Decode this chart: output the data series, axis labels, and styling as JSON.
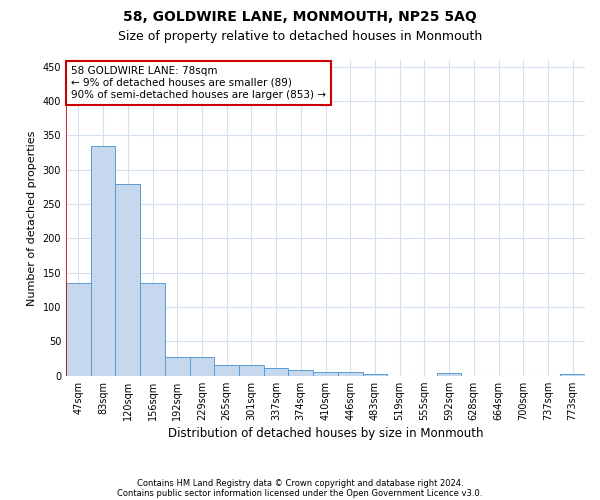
{
  "title1": "58, GOLDWIRE LANE, MONMOUTH, NP25 5AQ",
  "title2": "Size of property relative to detached houses in Monmouth",
  "xlabel": "Distribution of detached houses by size in Monmouth",
  "ylabel": "Number of detached properties",
  "categories": [
    "47sqm",
    "83sqm",
    "120sqm",
    "156sqm",
    "192sqm",
    "229sqm",
    "265sqm",
    "301sqm",
    "337sqm",
    "374sqm",
    "410sqm",
    "446sqm",
    "483sqm",
    "519sqm",
    "555sqm",
    "592sqm",
    "628sqm",
    "664sqm",
    "700sqm",
    "737sqm",
    "773sqm"
  ],
  "values": [
    135,
    335,
    280,
    135,
    27,
    27,
    15,
    15,
    11,
    9,
    6,
    5,
    3,
    0,
    0,
    4,
    0,
    0,
    0,
    0,
    3
  ],
  "bar_color": "#c5d8ed",
  "bar_edge_color": "#5b9bd5",
  "vline_color": "#cc0000",
  "vline_x_index": 0,
  "annotation_line1": "58 GOLDWIRE LANE: 78sqm",
  "annotation_line2": "← 9% of detached houses are smaller (89)",
  "annotation_line3": "90% of semi-detached houses are larger (853) →",
  "annotation_box_color": "#ffffff",
  "annotation_box_edge": "#cc0000",
  "ylim": [
    0,
    460
  ],
  "yticks": [
    0,
    50,
    100,
    150,
    200,
    250,
    300,
    350,
    400,
    450
  ],
  "footer1": "Contains HM Land Registry data © Crown copyright and database right 2024.",
  "footer2": "Contains public sector information licensed under the Open Government Licence v3.0.",
  "bg_color": "#ffffff",
  "grid_color": "#d4dff0",
  "title1_fontsize": 10,
  "title2_fontsize": 9,
  "xlabel_fontsize": 8.5,
  "ylabel_fontsize": 8,
  "tick_fontsize": 7,
  "annotation_fontsize": 7.5,
  "footer_fontsize": 6
}
